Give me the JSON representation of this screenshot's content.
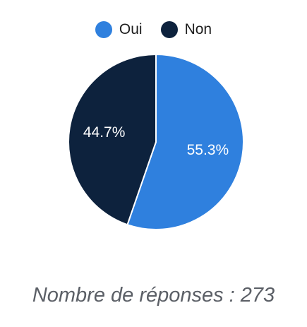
{
  "chart_data": {
    "type": "pie",
    "labels": [
      "Oui",
      "Non"
    ],
    "values": [
      55.3,
      44.7
    ],
    "value_labels": [
      "55.3%",
      "44.7%"
    ],
    "colors": [
      "#2f80de",
      "#0d223d"
    ],
    "legend_position": "top"
  },
  "legend": {
    "items": [
      {
        "label": "Oui",
        "color": "#2f80de"
      },
      {
        "label": "Non",
        "color": "#0d223d"
      }
    ]
  },
  "footer": {
    "text": "Nombre de réponses : 273"
  }
}
